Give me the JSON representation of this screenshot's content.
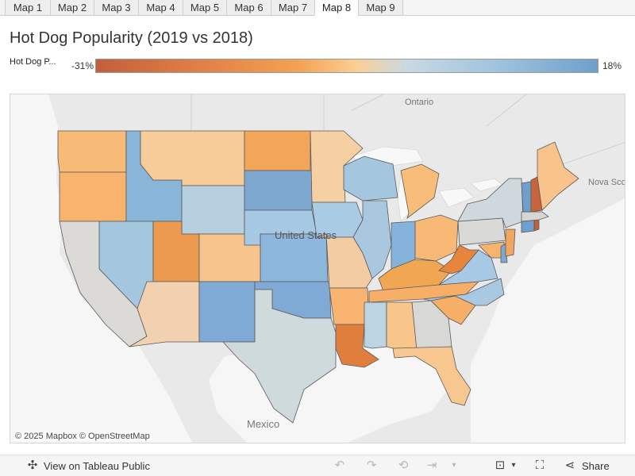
{
  "tabs": [
    {
      "label": "Map 1",
      "active": false
    },
    {
      "label": "Map 2",
      "active": false
    },
    {
      "label": "Map 3",
      "active": false
    },
    {
      "label": "Map 4",
      "active": false
    },
    {
      "label": "Map 5",
      "active": false
    },
    {
      "label": "Map 6",
      "active": false
    },
    {
      "label": "Map 7",
      "active": false
    },
    {
      "label": "Map 8",
      "active": true
    },
    {
      "label": "Map 9",
      "active": false
    }
  ],
  "title": "Hot Dog Popularity (2019 vs 2018)",
  "legend": {
    "label": "Hot Dog P...",
    "min_label": "-31%",
    "max_label": "18%",
    "min_value": -31,
    "max_value": 18
  },
  "map": {
    "place_labels": [
      "Ontario",
      "Nova Scot",
      "United States",
      "Mexico"
    ],
    "attribution": "© 2025 Mapbox  © OpenStreetMap",
    "states": [
      {
        "name": "Washington",
        "color": "#f8bb77"
      },
      {
        "name": "Oregon",
        "color": "#f8b46c"
      },
      {
        "name": "Idaho",
        "color": "#8ab6d9"
      },
      {
        "name": "Montana",
        "color": "#f6cc99"
      },
      {
        "name": "Wyoming",
        "color": "#b7d0e0"
      },
      {
        "name": "Nevada",
        "color": "#a4c6de"
      },
      {
        "name": "Utah",
        "color": "#ec9a4f"
      },
      {
        "name": "Colorado",
        "color": "#f6c48c"
      },
      {
        "name": "California",
        "color": "#dcdad7"
      },
      {
        "name": "Arizona",
        "color": "#f2d1b0"
      },
      {
        "name": "New Mexico",
        "color": "#7faad6"
      },
      {
        "name": "North Dakota",
        "color": "#f3a65a"
      },
      {
        "name": "South Dakota",
        "color": "#7fa8d1"
      },
      {
        "name": "Nebraska",
        "color": "#a6c8e3"
      },
      {
        "name": "Kansas",
        "color": "#8db7dc"
      },
      {
        "name": "Oklahoma",
        "color": "#7faad6"
      },
      {
        "name": "Texas",
        "color": "#cfdadc"
      },
      {
        "name": "Minnesota",
        "color": "#f6cfa2"
      },
      {
        "name": "Iowa",
        "color": "#a9cbe4"
      },
      {
        "name": "Missouri",
        "color": "#f4cca3"
      },
      {
        "name": "Arkansas",
        "color": "#f8b470"
      },
      {
        "name": "Louisiana",
        "color": "#e07e3d"
      },
      {
        "name": "Wisconsin",
        "color": "#a4c6de"
      },
      {
        "name": "Illinois",
        "color": "#a9c7df"
      },
      {
        "name": "Michigan",
        "color": "#f8bd78"
      },
      {
        "name": "Indiana",
        "color": "#86b3dc"
      },
      {
        "name": "Ohio",
        "color": "#f8b976"
      },
      {
        "name": "Kentucky",
        "color": "#f0a652"
      },
      {
        "name": "Tennessee",
        "color": "#f7ae67"
      },
      {
        "name": "Mississippi",
        "color": "#bdd4e2"
      },
      {
        "name": "Alabama",
        "color": "#f8c58b"
      },
      {
        "name": "Georgia",
        "color": "#d8d8d6"
      },
      {
        "name": "Florida",
        "color": "#f8c78f"
      },
      {
        "name": "South Carolina",
        "color": "#f7ae66"
      },
      {
        "name": "North Carolina",
        "color": "#a9c9e2"
      },
      {
        "name": "Virginia",
        "color": "#a8c9e5"
      },
      {
        "name": "West Virginia",
        "color": "#e8853d"
      },
      {
        "name": "Pennsylvania",
        "color": "#d9d9d7"
      },
      {
        "name": "New York",
        "color": "#cfd8dc"
      },
      {
        "name": "Maryland",
        "color": "#f7b46c"
      },
      {
        "name": "Delaware",
        "color": "#7fa8d1"
      },
      {
        "name": "New Jersey",
        "color": "#f2a65f"
      },
      {
        "name": "Connecticut",
        "color": "#6f9fcc"
      },
      {
        "name": "Rhode Island",
        "color": "#c25f3c"
      },
      {
        "name": "Massachusetts",
        "color": "#d6d6d4"
      },
      {
        "name": "Vermont",
        "color": "#6e9fcb"
      },
      {
        "name": "New Hampshire",
        "color": "#c8643c"
      },
      {
        "name": "Maine",
        "color": "#f8c48c"
      }
    ]
  },
  "toolbar": {
    "view_label": "View on Tableau Public",
    "share_label": "Share"
  }
}
